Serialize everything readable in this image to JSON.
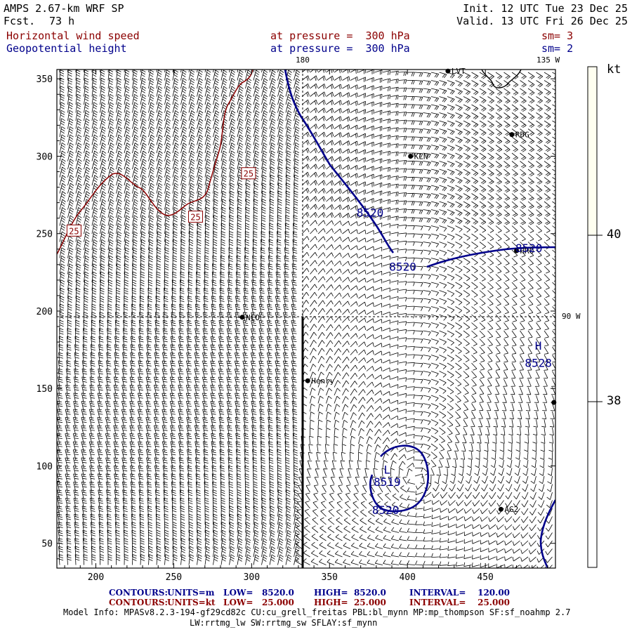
{
  "header": {
    "model": "AMPS 2.67-km WRF SP",
    "fcst_label": "Fcst.",
    "fcst_value": "73 h",
    "init": "Init. 12 UTC Tue 23 Dec 25",
    "valid": "Valid. 13 UTC Fri 26 Dec 25",
    "field1": "Horizontal wind speed",
    "field1_level": "at pressure =  300 hPa",
    "field1_sm": "sm= 3",
    "field2": "Geopotential height",
    "field2_level": "at pressure =  300 hPa",
    "field2_sm": "sm= 2"
  },
  "map": {
    "lon_180": "180",
    "lon_135w": "135 W",
    "lon_90w": "90 W",
    "x_ticks": [
      200,
      250,
      300,
      350,
      400,
      450
    ],
    "y_ticks": [
      50,
      100,
      150,
      200,
      250,
      300,
      350
    ],
    "x_range": [
      175,
      495
    ],
    "y_range": [
      34,
      356
    ],
    "stations": [
      {
        "name": "LVT",
        "x": 426,
        "y": 355
      },
      {
        "name": "RDG",
        "x": 467,
        "y": 314
      },
      {
        "name": "KLN",
        "x": 402,
        "y": 300
      },
      {
        "name": "HRO",
        "x": 470,
        "y": 239
      },
      {
        "name": "NCO",
        "x": 294,
        "y": 196
      },
      {
        "name": "Henry",
        "x": 336,
        "y": 155
      },
      {
        "name": "AG2",
        "x": 460,
        "y": 72
      },
      {
        "name": "",
        "x": 494,
        "y": 141
      }
    ],
    "height_labels": [
      {
        "text": "8520",
        "x": 376,
        "y": 261
      },
      {
        "text": "8520",
        "x": 397,
        "y": 226
      },
      {
        "text": "8520",
        "x": 478,
        "y": 238
      },
      {
        "text": "8520",
        "x": 386,
        "y": 69
      },
      {
        "text": "8519",
        "x": 387,
        "y": 87
      },
      {
        "text": "L",
        "x": 387,
        "y": 95
      },
      {
        "text": "H",
        "x": 484,
        "y": 175
      },
      {
        "text": "8528",
        "x": 484,
        "y": 164
      }
    ],
    "speed_labels": [
      {
        "text": "25",
        "x": 186,
        "y": 252
      },
      {
        "text": "25",
        "x": 264,
        "y": 261
      },
      {
        "text": "25",
        "x": 298,
        "y": 289
      }
    ],
    "colors": {
      "height": "#00008b",
      "speed": "#8b0000",
      "barb": "#000000"
    }
  },
  "colorbar": {
    "unit": "kt",
    "labels": [
      "40",
      "38"
    ],
    "colors": {
      "upper": "#fffff0",
      "lower": "#ffffff"
    }
  },
  "footer": {
    "row1": {
      "label": "CONTOURS:",
      "units": "UNITS=m",
      "low": "LOW=   8520.0",
      "high": "HIGH=  8520.0",
      "interval": "INTERVAL=    120.00"
    },
    "row2": {
      "label": "CONTOURS:",
      "units": "UNITS=kt",
      "low": "LOW=   25.000",
      "high": "HIGH=  25.000",
      "interval": "INTERVAL=    25.000"
    },
    "model_info": "Model Info: MPASv8.2.3-194-gf29cd82c CU:cu_grell_freitas PBL:bl_mynn MP:mp_thompson SF:sf_noahmp 2.7",
    "model_info2": "LW:rrtmg_lw SW:rrtmg_sw SFLAY:sf_mynn"
  }
}
